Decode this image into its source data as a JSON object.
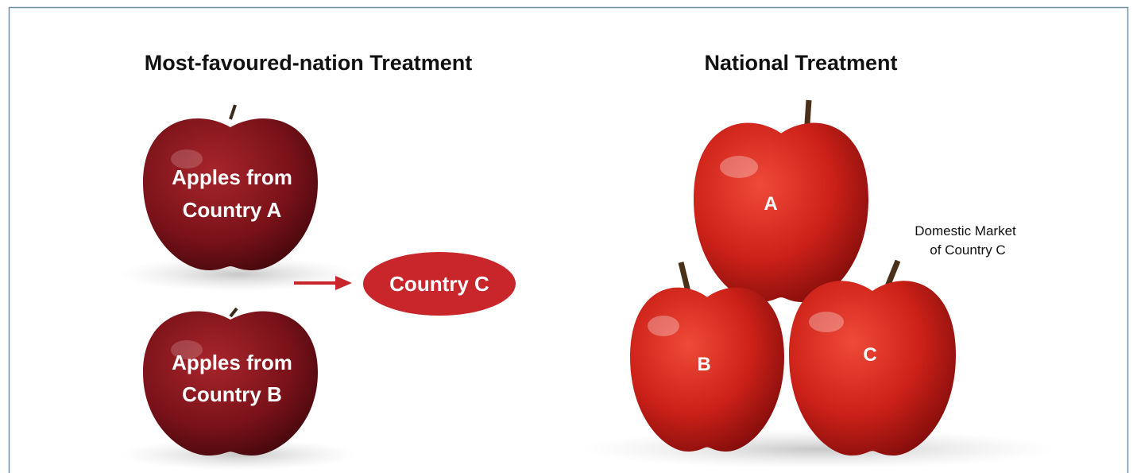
{
  "left": {
    "title": "Most-favoured-nation Treatment",
    "apples": [
      {
        "lines": [
          "Apples from",
          "Country A"
        ]
      },
      {
        "lines": [
          "Apples from",
          "Country B"
        ]
      }
    ],
    "destination": "Country C"
  },
  "right": {
    "title": "National Treatment",
    "apples": [
      "A",
      "B",
      "C"
    ],
    "note_lines": [
      "Domestic Market",
      "of Country C"
    ]
  }
}
